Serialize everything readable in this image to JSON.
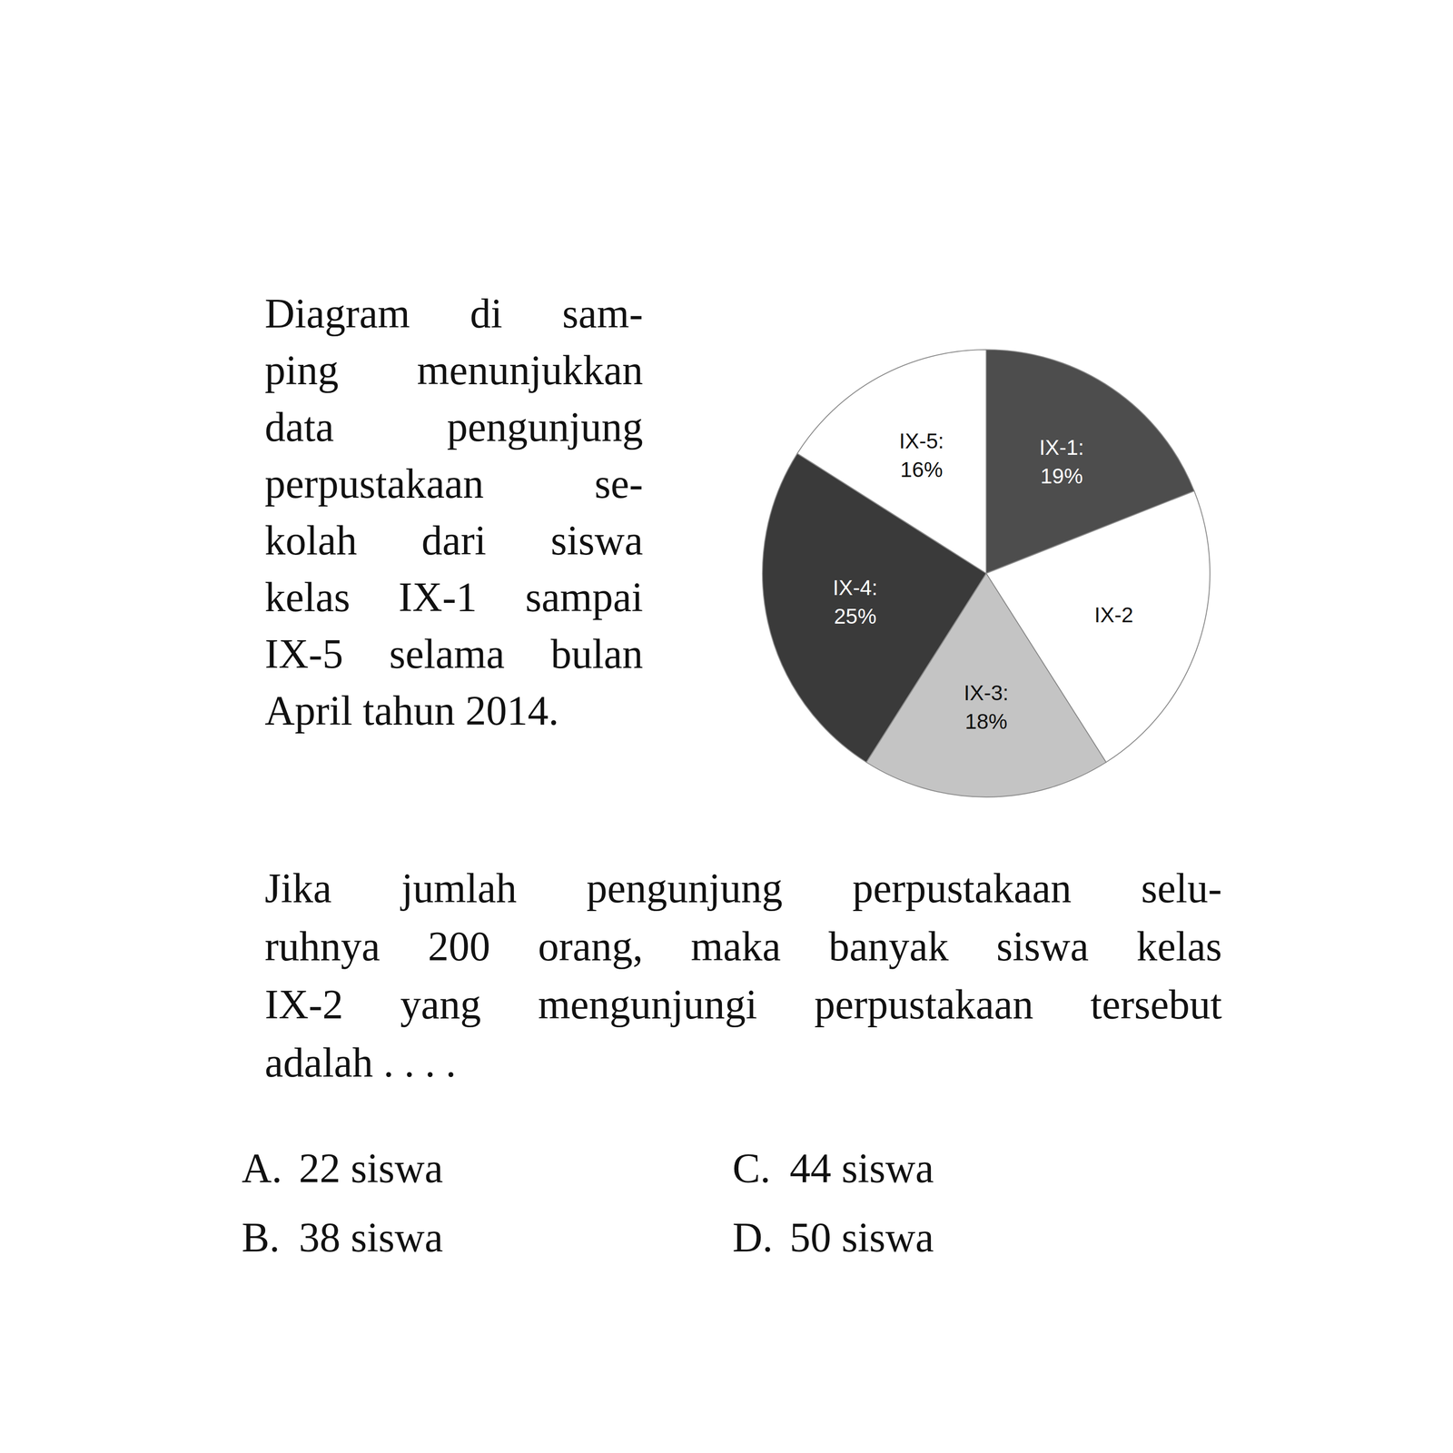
{
  "intro_lines": [
    "Diagram di sam-",
    "ping menunjukkan",
    "data pengunjung",
    "perpustakaan se-",
    "kolah dari siswa",
    "kelas IX-1 sampai",
    "IX-5 selama bulan",
    "April tahun 2014."
  ],
  "chart_data": {
    "type": "pie",
    "categories": [
      "IX-1:",
      "IX-2",
      "IX-3:",
      "IX-4:",
      "IX-5:"
    ],
    "values": [
      19,
      22,
      18,
      25,
      16
    ],
    "value_labels": [
      "19%",
      null,
      "18%",
      "25%",
      "16%"
    ],
    "colors": [
      "#4d4d4d",
      "#ffffff",
      "#c4c4c4",
      "#3a3a3a",
      "#ffffff"
    ],
    "data_labels": true
  },
  "question_lines": [
    "Jika jumlah pengunjung perpustakaan selu-",
    "ruhnya 200 orang, maka banyak siswa kelas",
    "IX-2 yang mengunjungi perpustakaan tersebut",
    "adalah . . . ."
  ],
  "options": [
    {
      "letter": "A.",
      "text": "22 siswa"
    },
    {
      "letter": "B.",
      "text": "38 siswa"
    },
    {
      "letter": "C.",
      "text": "44 siswa"
    },
    {
      "letter": "D.",
      "text": "50 siswa"
    }
  ]
}
